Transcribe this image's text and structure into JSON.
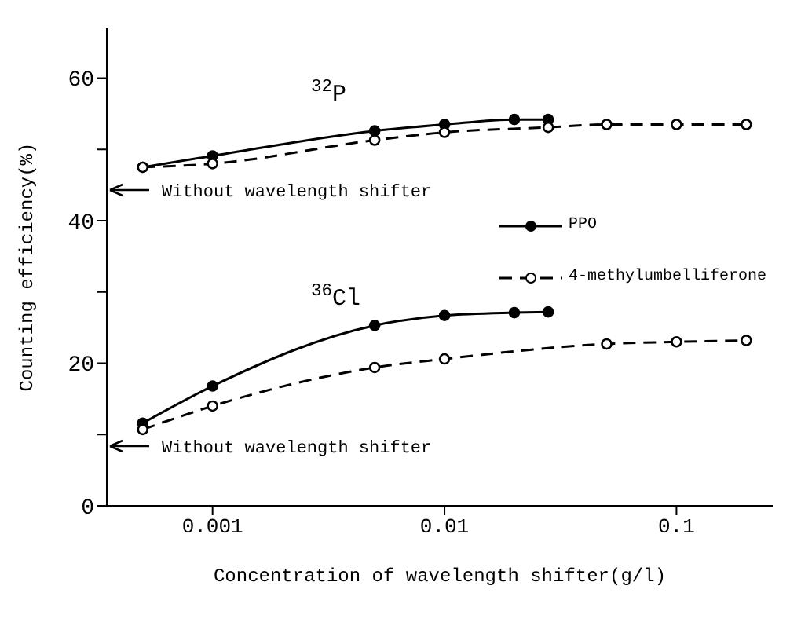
{
  "chart_data": {
    "type": "line",
    "xlabel": "Concentration of wavelength shifter(g/l)",
    "ylabel": "Counting efficiency(%)",
    "log": "x",
    "xlim": [
      0.00035,
      0.26
    ],
    "xticks": [
      0.001,
      0.01,
      0.1
    ],
    "ylim": [
      0,
      67
    ],
    "yticks": [
      0,
      {
        "value": 10,
        "label": null
      },
      20,
      {
        "value": 30,
        "label": null
      },
      40,
      {
        "value": 50,
        "label": null
      },
      60
    ],
    "grid": false,
    "legend": "right",
    "marker": "circle",
    "series": [
      {
        "name": "PPO",
        "color": "#000000",
        "line_style": "solid",
        "x": [
          0.0005,
          0.001,
          0.005,
          0.01,
          0.02,
          0.028
        ],
        "values": [
          47.5,
          49.1,
          52.6,
          53.5,
          54.2,
          54.2
        ]
      },
      {
        "name": "4-methylumbelliferone",
        "color": "#000000",
        "line_style": "dashed",
        "x": [
          0.0005,
          0.001,
          0.005,
          0.01,
          0.028,
          0.05,
          0.1,
          0.2
        ],
        "values": [
          47.5,
          48.0,
          51.3,
          52.4,
          53.1,
          53.5,
          53.5,
          53.5
        ]
      },
      {
        "color": "#000000",
        "line_style": "solid",
        "x": [
          0.0005,
          0.001,
          0.005,
          0.01,
          0.02,
          0.028
        ],
        "values": [
          11.6,
          16.8,
          25.3,
          26.7,
          27.1,
          27.2
        ]
      },
      {
        "color": "#000000",
        "line_style": "dashed",
        "x": [
          0.0005,
          0.001,
          0.005,
          0.01,
          0.05,
          0.1,
          0.2
        ],
        "values": [
          10.7,
          14.0,
          19.4,
          20.6,
          22.7,
          23.0,
          23.2
        ]
      }
    ],
    "annotations": [
      "$^{32}$P",
      "$^{36}$Cl",
      "Without wavelength shifter",
      "Without wavelength shifter"
    ]
  }
}
